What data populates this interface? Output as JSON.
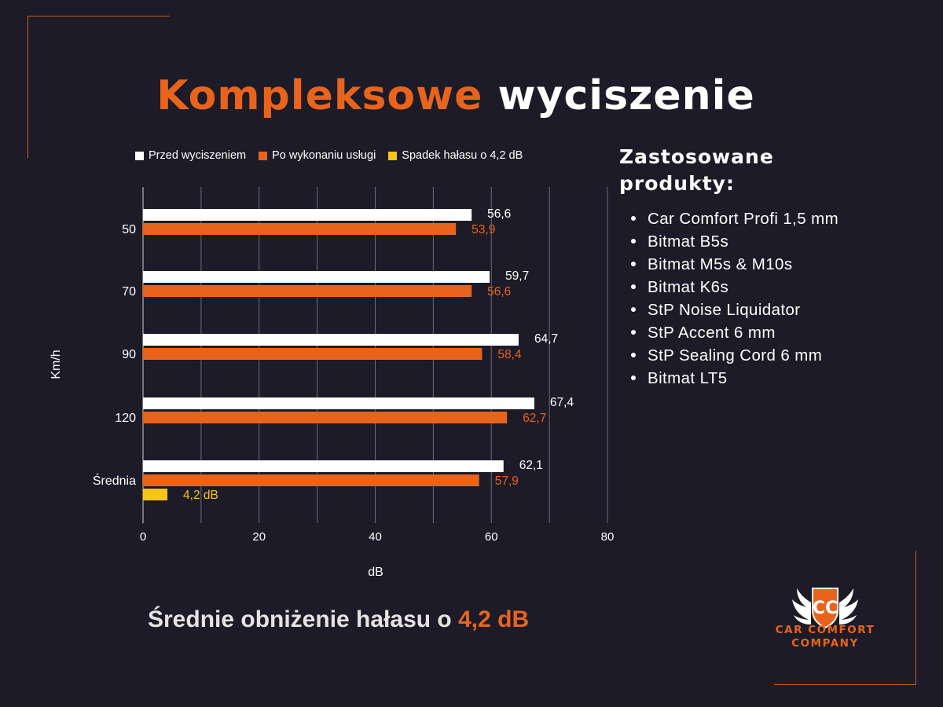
{
  "title": {
    "part1": "Kompleksowe",
    "part2": "wyciszenie"
  },
  "colors": {
    "before": "#ffffff",
    "after": "#e8641c",
    "drop": "#f5c518",
    "background": "#1d1b27",
    "accent": "#e8641c"
  },
  "chart_data": {
    "type": "bar",
    "orientation": "horizontal",
    "categories": [
      "50",
      "70",
      "90",
      "120",
      "Średnia"
    ],
    "series": [
      {
        "name": "Przed wyciszeniem",
        "values": [
          56.6,
          59.7,
          64.7,
          67.4,
          62.1
        ],
        "labels": [
          "56,6",
          "59,7",
          "64,7",
          "67,4",
          "62,1"
        ]
      },
      {
        "name": "Po wykonaniu usługi",
        "values": [
          53.9,
          56.6,
          58.4,
          62.7,
          57.9
        ],
        "labels": [
          "53,9",
          "56,6",
          "58,4",
          "62,7",
          "57,9"
        ]
      },
      {
        "name": "Spadek hałasu o 4,2 dB",
        "values": [
          null,
          null,
          null,
          null,
          4.2
        ],
        "labels": [
          null,
          null,
          null,
          null,
          "4,2 dB"
        ]
      }
    ],
    "xlabel": "dB",
    "ylabel": "Km/h",
    "xlim": [
      0,
      80
    ],
    "xticks": [
      "0",
      "20",
      "40",
      "60",
      "80"
    ],
    "grid": true,
    "legend_position": "top"
  },
  "products": {
    "title_line1": "Zastosowane",
    "title_line2": "produkty:",
    "items": [
      "Car Comfort Profi 1,5 mm",
      "Bitmat B5s",
      "Bitmat M5s & M10s",
      "Bitmat K6s",
      "StP Noise Liquidator",
      "StP Accent 6 mm",
      "StP Sealing Cord 6 mm",
      "Bitmat LT5"
    ]
  },
  "summary": {
    "text": "Średnie obniżenie hałasu o",
    "highlight": "4,2 dB"
  },
  "logo": {
    "monogram": "CC",
    "line1": "CAR COMFORT",
    "line2": "COMPANY",
    "icon": "winged-shield-icon"
  }
}
